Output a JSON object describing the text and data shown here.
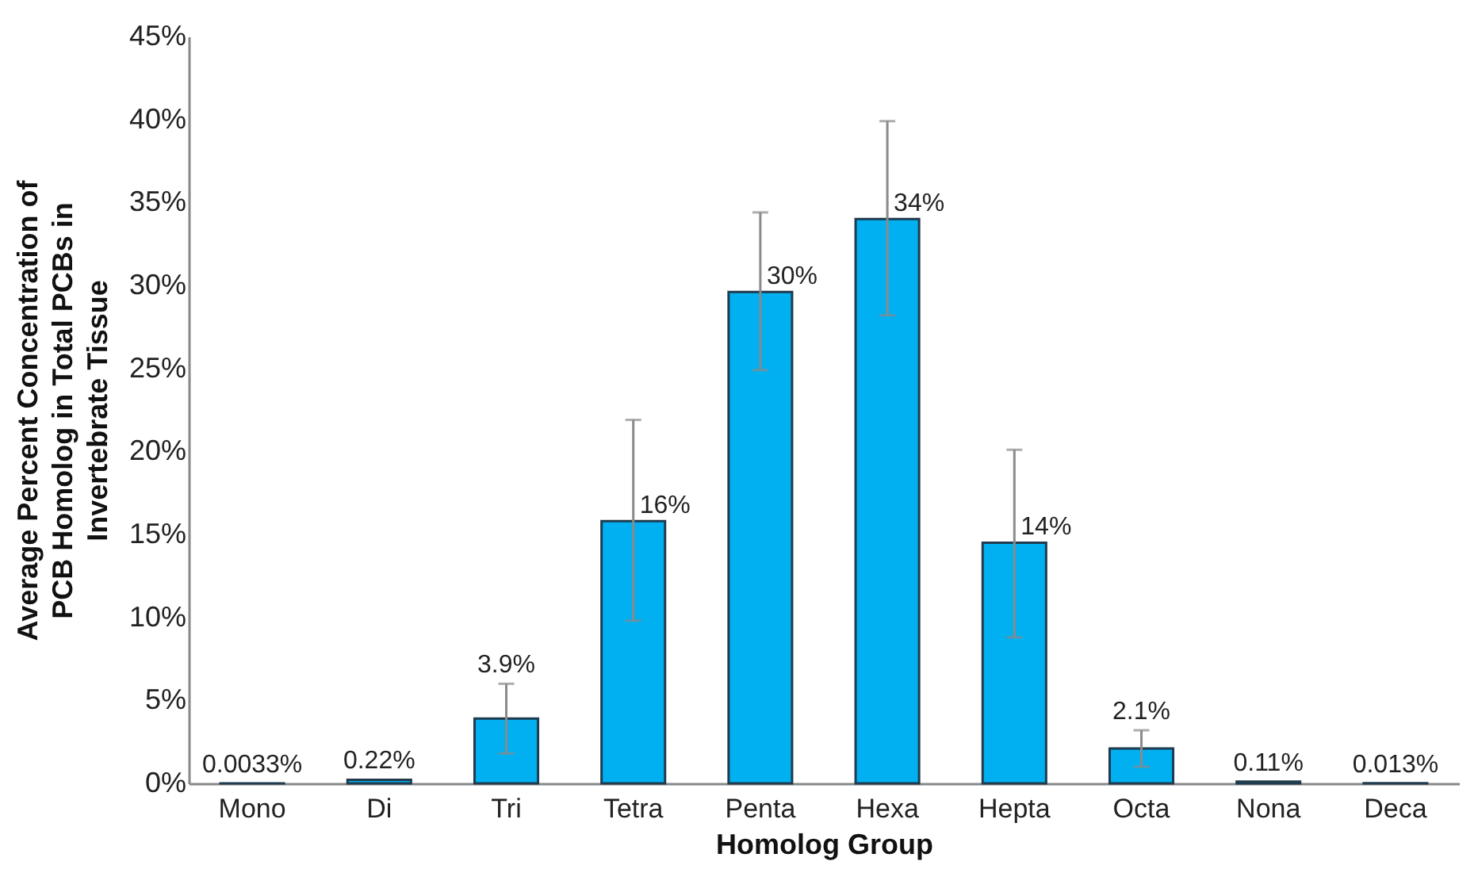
{
  "chart_data": {
    "type": "bar",
    "xlabel": "Homolog Group",
    "ylabel": "Average Percent  Concentration of PCB Homolog in Total PCBs in Invertebrate Tissue",
    "categories": [
      "Mono",
      "Di",
      "Tri",
      "Tetra",
      "Penta",
      "Hexa",
      "Hepta",
      "Octa",
      "Nona",
      "Deca"
    ],
    "values": [
      0.0033,
      0.22,
      3.9,
      15.8,
      29.6,
      34.0,
      14.5,
      2.1,
      0.11,
      0.013
    ],
    "errors": [
      null,
      null,
      [
        1.8,
        6.0
      ],
      [
        9.8,
        21.9
      ],
      [
        24.9,
        34.4
      ],
      [
        28.2,
        39.9
      ],
      [
        8.8,
        20.1
      ],
      [
        1.0,
        3.2
      ],
      null,
      null
    ],
    "value_labels": [
      "0.0033%",
      "0.22%",
      "3.9%",
      "16%",
      "30%",
      "34%",
      "14%",
      "2.1%",
      "0.11%",
      "0.013%"
    ],
    "color": "#00b0f0",
    "ylim": [
      0,
      45
    ],
    "yticks": [
      {
        "value": 0,
        "label": "0%"
      },
      {
        "value": 5,
        "label": "5%"
      },
      {
        "value": 10,
        "label": "10%"
      },
      {
        "value": 15,
        "label": "15%"
      },
      {
        "value": 20,
        "label": "20%"
      },
      {
        "value": 25,
        "label": "25%"
      },
      {
        "value": 30,
        "label": "30%"
      },
      {
        "value": 35,
        "label": "35%"
      },
      {
        "value": 40,
        "label": "40%"
      },
      {
        "value": 45,
        "label": "45%"
      }
    ],
    "grid": false
  }
}
